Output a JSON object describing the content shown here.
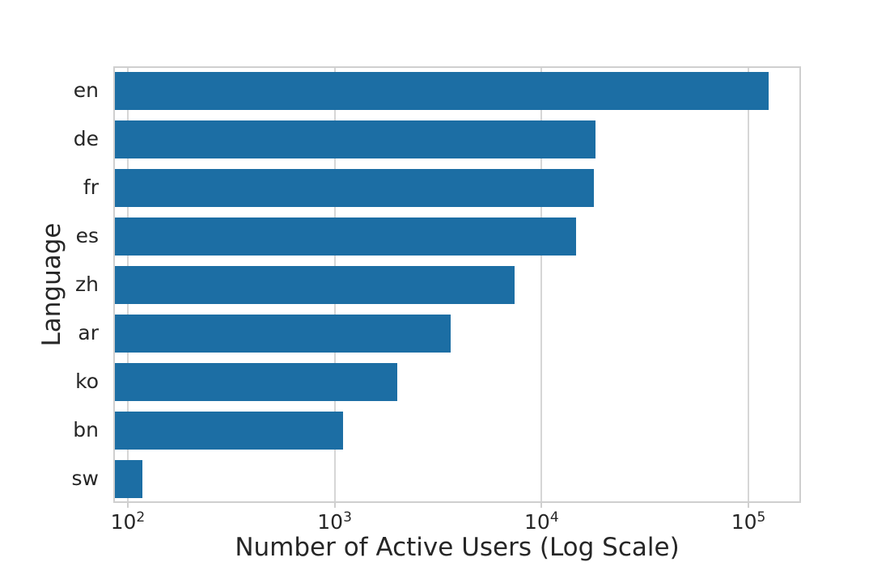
{
  "figure": {
    "background": "#ffffff",
    "text_color": "#262626",
    "grid_color": "#d6d6d6",
    "spine_color": "#cfcfcf"
  },
  "chart_data": {
    "type": "bar",
    "orientation": "horizontal",
    "title": "",
    "xlabel": "Number of Active Users (Log Scale)",
    "ylabel": "Language",
    "x_scale": "log",
    "grid": true,
    "legend": false,
    "bar_color": "#1c6ea4",
    "categories": [
      "en",
      "de",
      "fr",
      "es",
      "zh",
      "ar",
      "ko",
      "bn",
      "sw"
    ],
    "values": [
      125000,
      18200,
      17900,
      14700,
      7400,
      3650,
      2000,
      1100,
      118
    ],
    "xlim_log10": [
      1.93,
      5.254
    ],
    "x_ticks": [
      {
        "base": "10",
        "exponent": "2",
        "value": 100
      },
      {
        "base": "10",
        "exponent": "3",
        "value": 1000
      },
      {
        "base": "10",
        "exponent": "4",
        "value": 10000
      },
      {
        "base": "10",
        "exponent": "5",
        "value": 100000
      }
    ]
  }
}
